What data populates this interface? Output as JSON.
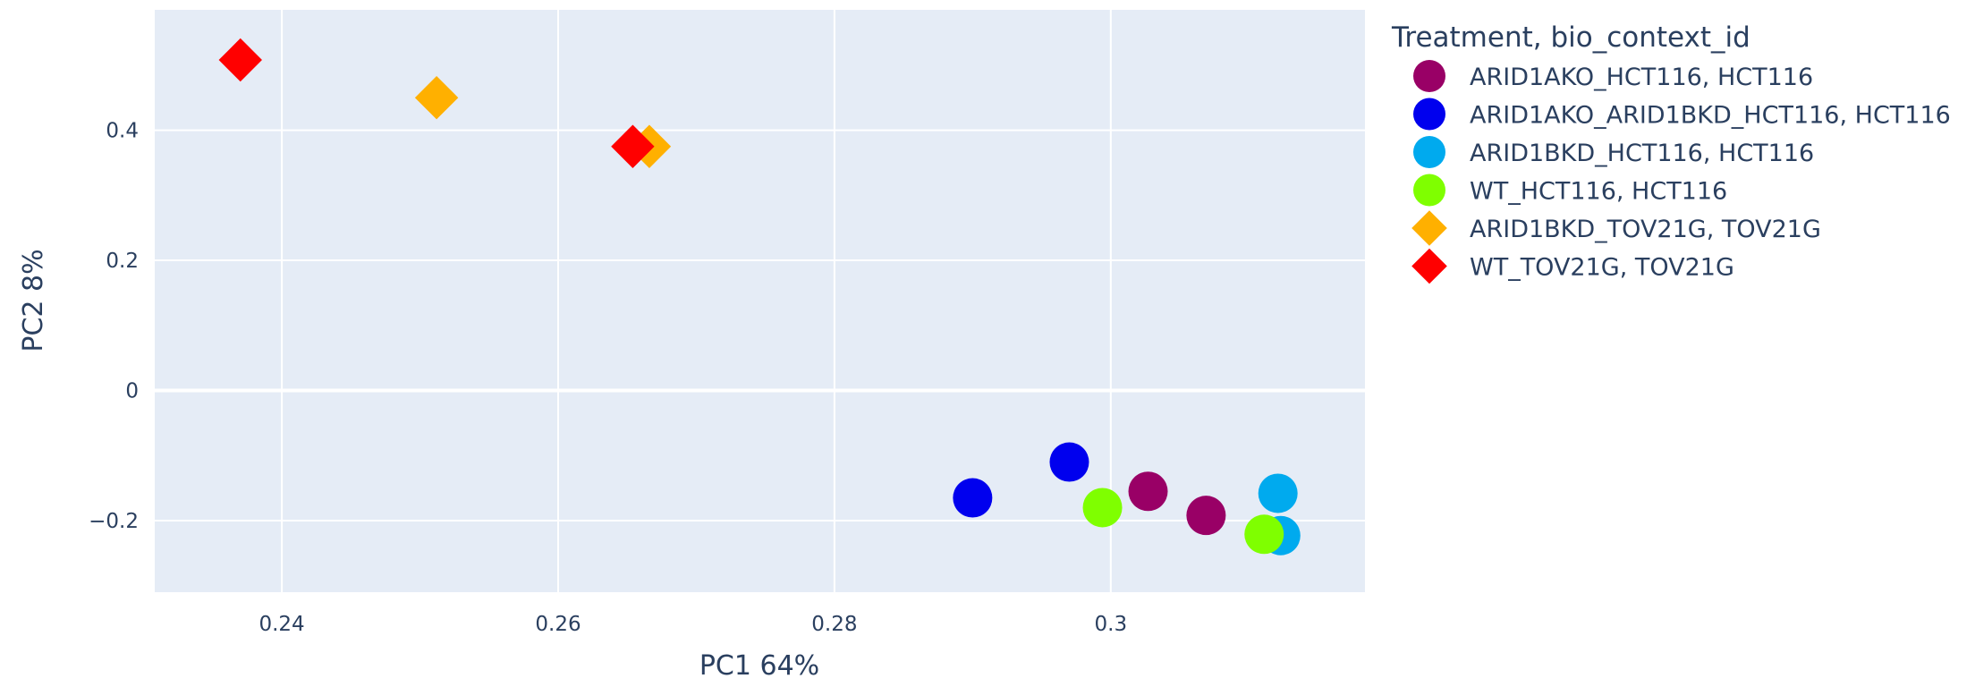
{
  "chart_data": {
    "type": "scatter",
    "xlabel": "PC1 64%",
    "ylabel": "PC2 8%",
    "xlim": [
      0.2308,
      0.3184
    ],
    "ylim": [
      -0.31,
      0.585
    ],
    "x_ticks": [
      0.24,
      0.26,
      0.28,
      0.3
    ],
    "x_tick_labels": [
      "0.24",
      "0.26",
      "0.28",
      "0.3"
    ],
    "y_ticks": [
      -0.2,
      0,
      0.2,
      0.4
    ],
    "y_tick_labels": [
      "−0.2",
      "0",
      "0.2",
      "0.4"
    ],
    "grid": true,
    "legend_position": "right",
    "legend_title": "Treatment, bio_context_id",
    "series": [
      {
        "name": "ARID1AKO_HCT116, HCT116",
        "color": "#990066",
        "marker": "circle",
        "points": [
          [
            0.3027,
            -0.155
          ],
          [
            0.3069,
            -0.192
          ]
        ]
      },
      {
        "name": "ARID1AKO_ARID1BKD_HCT116, HCT116",
        "color": "#0000ee",
        "marker": "circle",
        "points": [
          [
            0.29,
            -0.165
          ],
          [
            0.297,
            -0.11
          ]
        ]
      },
      {
        "name": "ARID1BKD_HCT116, HCT116",
        "color": "#00aaee",
        "marker": "circle",
        "points": [
          [
            0.3121,
            -0.158
          ],
          [
            0.3123,
            -0.223
          ]
        ]
      },
      {
        "name": "WT_HCT116, HCT116",
        "color": "#7fff00",
        "marker": "circle",
        "points": [
          [
            0.2994,
            -0.18
          ],
          [
            0.3111,
            -0.221
          ]
        ]
      },
      {
        "name": "ARID1BKD_TOV21G, TOV21G",
        "color": "#ffb000",
        "marker": "diamond",
        "points": [
          [
            0.2512,
            0.45
          ],
          [
            0.2666,
            0.375
          ]
        ]
      },
      {
        "name": "WT_TOV21G, TOV21G",
        "color": "#ff0000",
        "marker": "diamond",
        "points": [
          [
            0.237,
            0.508
          ],
          [
            0.2654,
            0.375
          ]
        ]
      }
    ]
  },
  "colors": {
    "plot_background": "#e5ecf6",
    "grid": "#ffffff",
    "text": "#2a3f5f"
  }
}
